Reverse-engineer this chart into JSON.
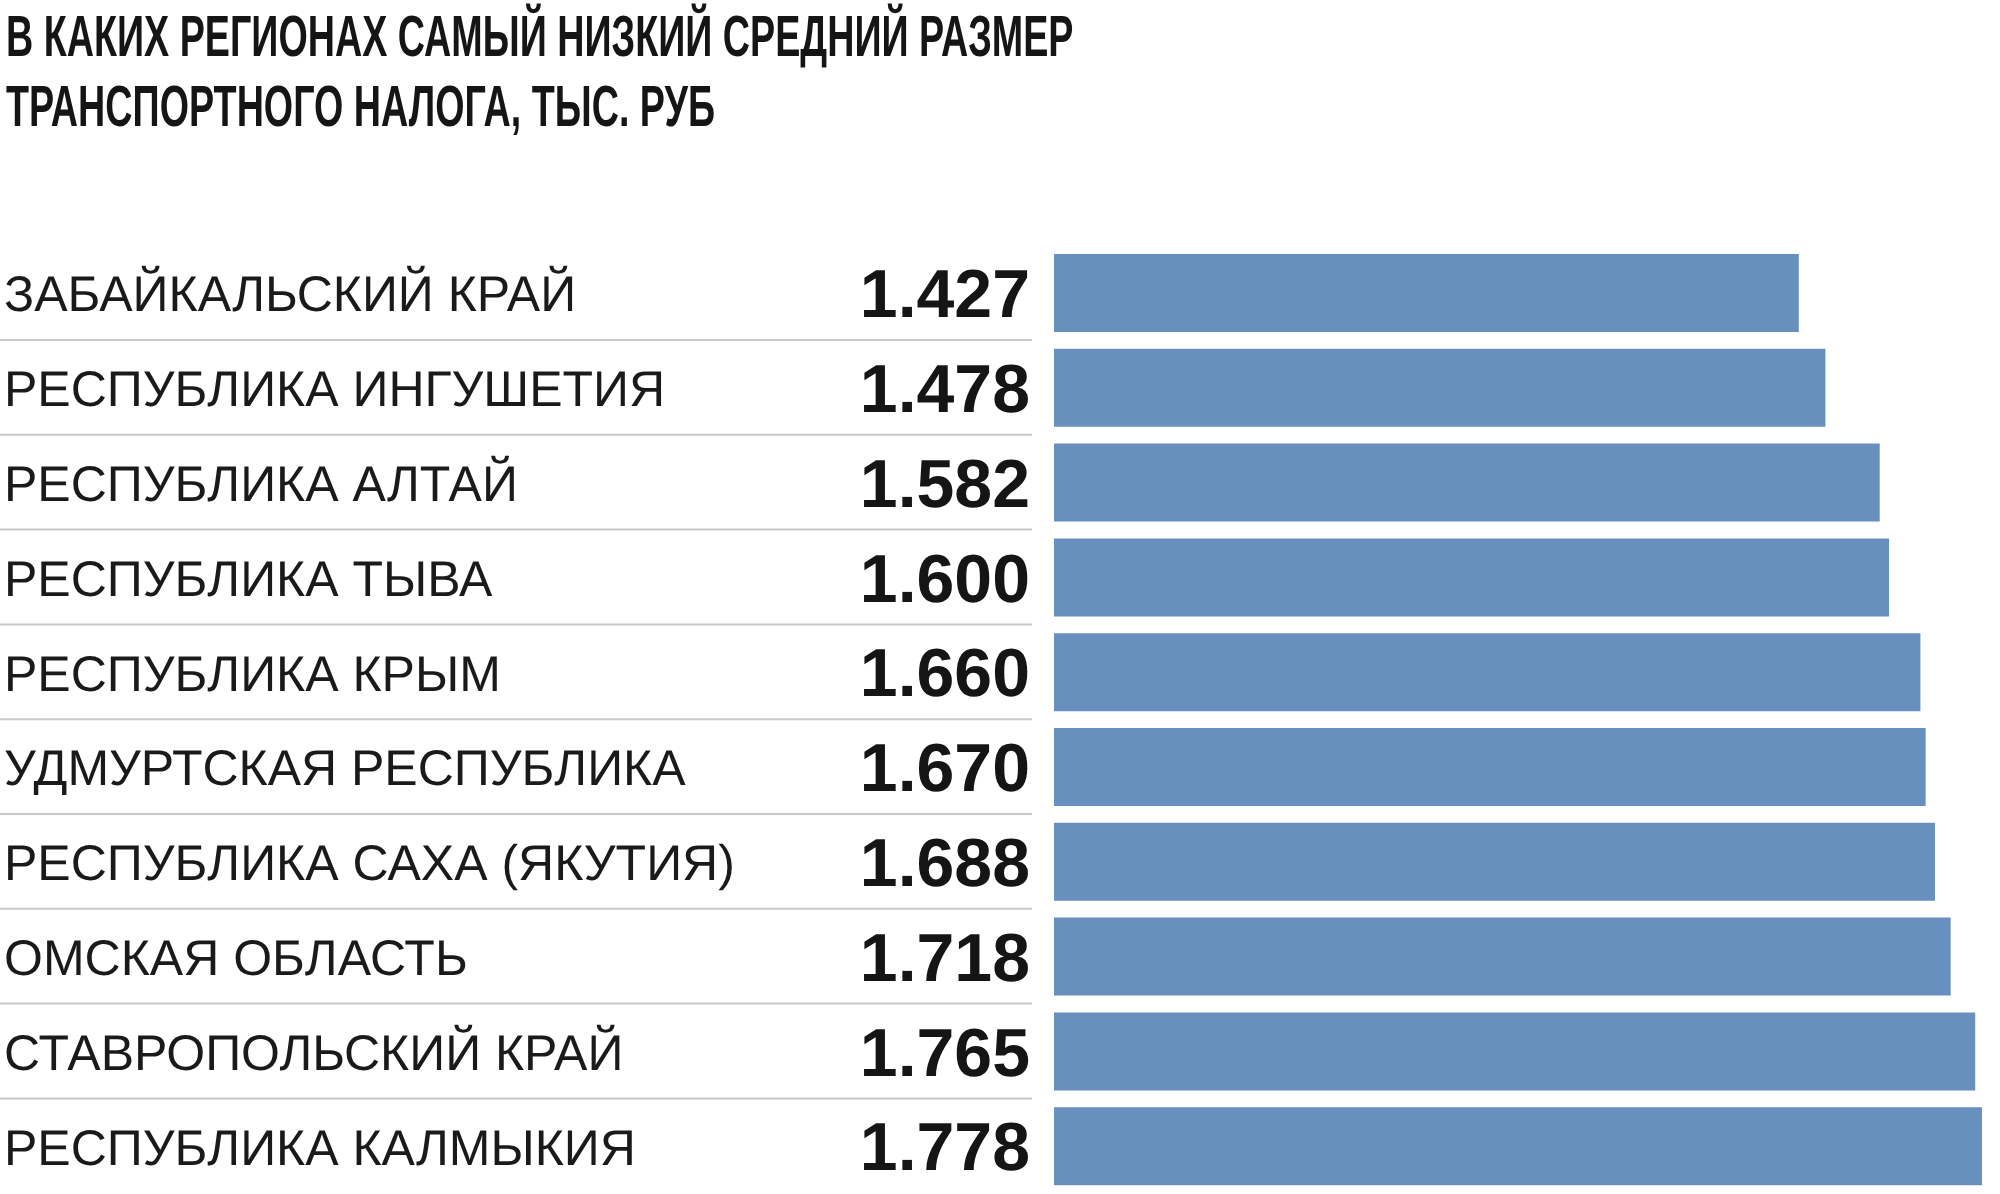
{
  "chart_data": {
    "type": "bar",
    "orientation": "horizontal",
    "title": "В КАКИХ РЕГИОНАХ САМЫЙ НИЗКИЙ СРЕДНИЙ РАЗМЕР ТРАНСПОРТНОГО НАЛОГА, ТЫС. РУБ",
    "categories": [
      "ЗАБАЙКАЛЬСКИЙ КРАЙ",
      "РЕСПУБЛИКА ИНГУШЕТИЯ",
      "РЕСПУБЛИКА АЛТАЙ",
      "РЕСПУБЛИКА ТЫВА",
      "РЕСПУБЛИКА КРЫМ",
      "УДМУРТСКАЯ РЕСПУБЛИКА",
      "РЕСПУБЛИКА САХА (ЯКУТИЯ)",
      "ОМСКАЯ ОБЛАСТЬ",
      "СТАВРОПОЛЬСКИЙ КРАЙ",
      "РЕСПУБЛИКА КАЛМЫКИЯ"
    ],
    "values": [
      1.427,
      1.478,
      1.582,
      1.6,
      1.66,
      1.67,
      1.688,
      1.718,
      1.765,
      1.778
    ],
    "value_labels": [
      "1.427",
      "1.478",
      "1.582",
      "1.600",
      "1.660",
      "1.670",
      "1.688",
      "1.718",
      "1.765",
      "1.778"
    ],
    "color": "#6890bf",
    "tick_labels": "y"
  }
}
